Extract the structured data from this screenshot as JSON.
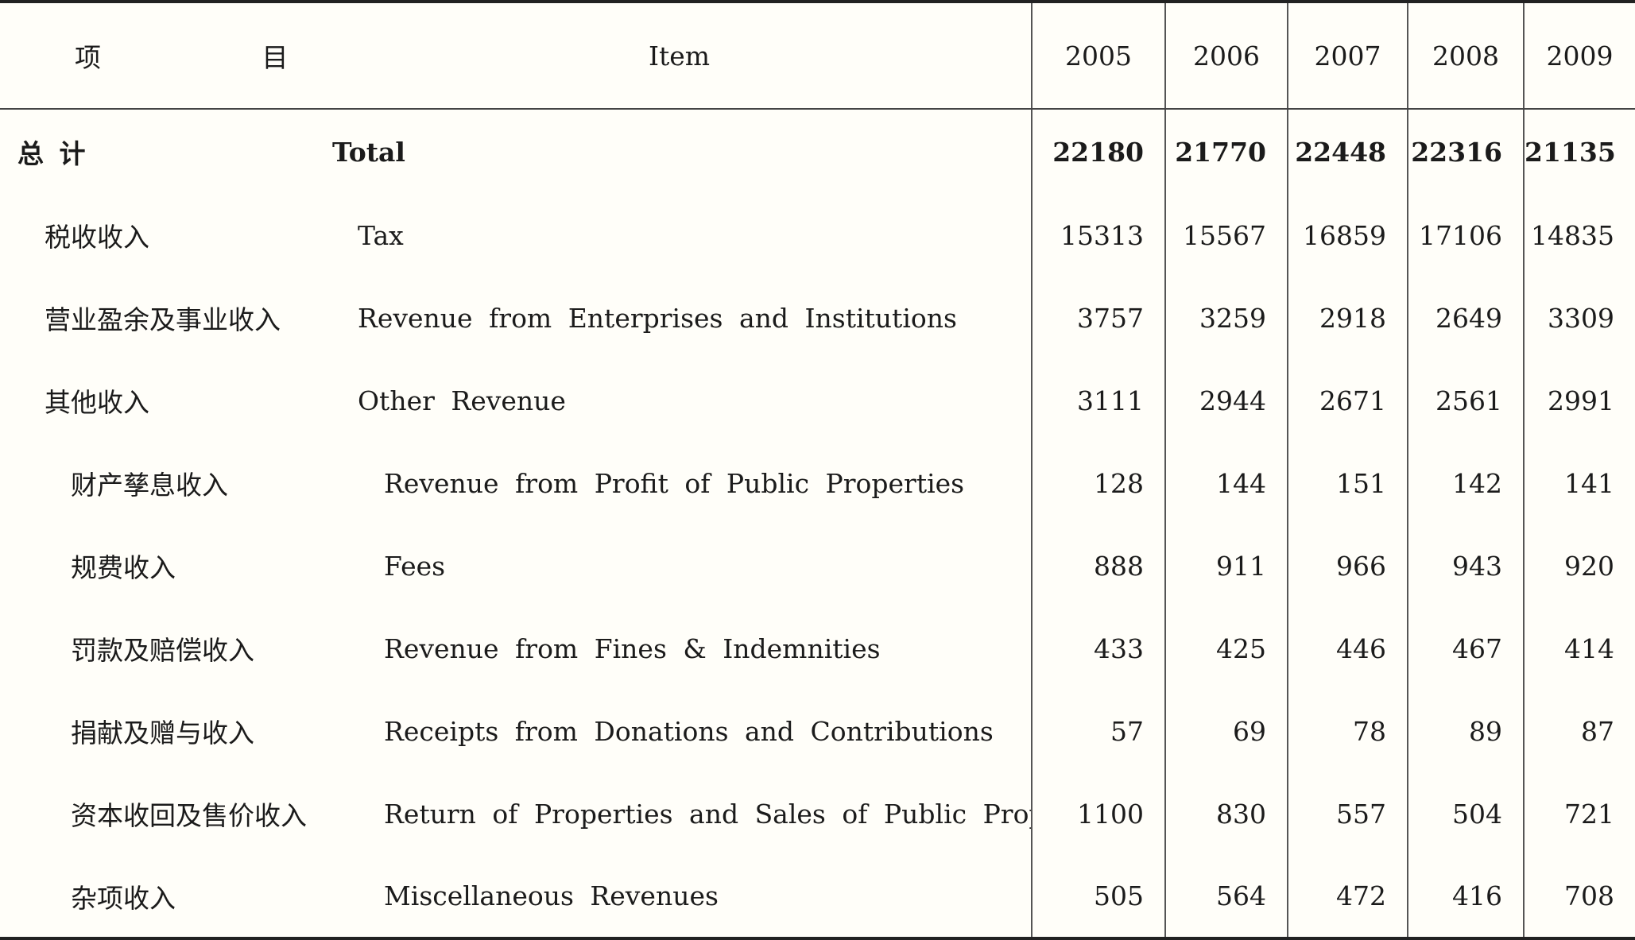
{
  "header": {
    "cn_label": "项  目",
    "en_label": "Item",
    "years": [
      "2005",
      "2006",
      "2007",
      "2008",
      "2009"
    ]
  },
  "rows": [
    {
      "cn": "总  计",
      "en": "Total",
      "values": [
        "22180",
        "21770",
        "22448",
        "22316",
        "21135"
      ]
    },
    {
      "cn": "税收收入",
      "en": "Tax",
      "values": [
        "15313",
        "15567",
        "16859",
        "17106",
        "14835"
      ]
    },
    {
      "cn": "营业盈余及事业收入",
      "en": "Revenue from Enterprises and Institutions",
      "values": [
        "3757",
        "3259",
        "2918",
        "2649",
        "3309"
      ]
    },
    {
      "cn": "其他收入",
      "en": "Other Revenue",
      "values": [
        "3111",
        "2944",
        "2671",
        "2561",
        "2991"
      ]
    },
    {
      "cn": "财产孳息收入",
      "en": "Revenue from Profit of Public Properties",
      "values": [
        "128",
        "144",
        "151",
        "142",
        "141"
      ]
    },
    {
      "cn": "规费收入",
      "en": "Fees",
      "values": [
        "888",
        "911",
        "966",
        "943",
        "920"
      ]
    },
    {
      "cn": "罚款及赔偿收入",
      "en": "Revenue from Fines & Indemnities",
      "values": [
        "433",
        "425",
        "446",
        "467",
        "414"
      ]
    },
    {
      "cn": "捐献及赠与收入",
      "en": "Receipts from Donations and Contributions",
      "values": [
        "57",
        "69",
        "78",
        "89",
        "87"
      ]
    },
    {
      "cn": "资本收回及售价收入",
      "en": "Return of Properties and Sales of Public Properties",
      "values": [
        "1100",
        "830",
        "557",
        "504",
        "721"
      ]
    },
    {
      "cn": "杂项收入",
      "en": "Miscellaneous Revenues",
      "values": [
        "505",
        "564",
        "472",
        "416",
        "708"
      ]
    }
  ]
}
